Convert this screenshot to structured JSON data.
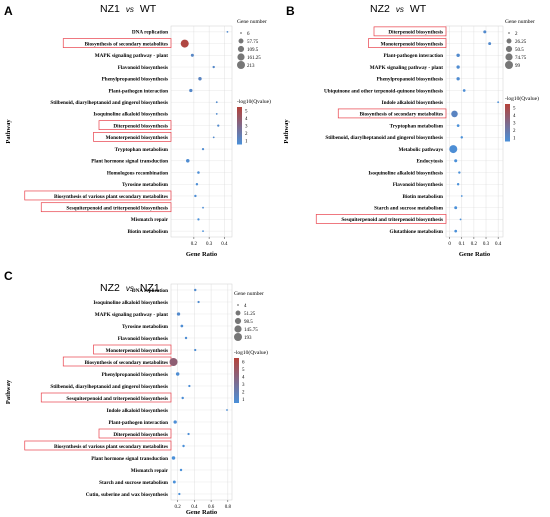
{
  "chart_data": [
    {
      "type": "scatter",
      "panel": "A",
      "title": {
        "left": "NZ1",
        "vs": "vs",
        "right": "WT"
      },
      "xlabel": "Gene Ratio",
      "ylabel": "Pathway",
      "xlim": [
        0.05,
        0.45
      ],
      "xticks": [
        "0.2",
        "0.3",
        "0.4"
      ],
      "pathways": [
        {
          "name": "DNA replication",
          "ratio": 0.42,
          "genes": 6,
          "q": 1.3,
          "highlight": false
        },
        {
          "name": "Biosynthesis of secondary metabolites",
          "ratio": 0.14,
          "genes": 213,
          "q": 4.8,
          "highlight": true
        },
        {
          "name": "MAPK signaling pathway - plant",
          "ratio": 0.19,
          "genes": 14,
          "q": 1.5,
          "highlight": false
        },
        {
          "name": "Flavonoid biosynthesis",
          "ratio": 0.33,
          "genes": 8,
          "q": 1.4,
          "highlight": false
        },
        {
          "name": "Phenylpropanoid biosynthesis",
          "ratio": 0.24,
          "genes": 20,
          "q": 1.6,
          "highlight": false
        },
        {
          "name": "Plant-pathogen interaction",
          "ratio": 0.18,
          "genes": 18,
          "q": 1.4,
          "highlight": false
        },
        {
          "name": "Stilbenoid, diarylheptanoid and gingerol biosynthesis",
          "ratio": 0.35,
          "genes": 6,
          "q": 1.3,
          "highlight": false
        },
        {
          "name": "Isoquinoline alkaloid biosynthesis",
          "ratio": 0.35,
          "genes": 6,
          "q": 1.3,
          "highlight": false
        },
        {
          "name": "Diterpenoid biosynthesis",
          "ratio": 0.36,
          "genes": 7,
          "q": 1.3,
          "highlight": true
        },
        {
          "name": "Monoterpenoid biosynthesis",
          "ratio": 0.33,
          "genes": 6,
          "q": 1.3,
          "highlight": true
        },
        {
          "name": "Tryptophan metabolism",
          "ratio": 0.26,
          "genes": 7,
          "q": 1.2,
          "highlight": false
        },
        {
          "name": "Plant hormone signal transduction",
          "ratio": 0.16,
          "genes": 22,
          "q": 1.2,
          "highlight": false
        },
        {
          "name": "Homologous recombination",
          "ratio": 0.23,
          "genes": 9,
          "q": 1.1,
          "highlight": false
        },
        {
          "name": "Tyrosine metabolism",
          "ratio": 0.22,
          "genes": 8,
          "q": 1.1,
          "highlight": false
        },
        {
          "name": "Biosynthesis of various plant secondary metabolites",
          "ratio": 0.21,
          "genes": 8,
          "q": 1.1,
          "highlight": true
        },
        {
          "name": "Sesquiterpenoid and triterpenoid biosynthesis",
          "ratio": 0.26,
          "genes": 6,
          "q": 1.1,
          "highlight": true
        },
        {
          "name": "Mismatch repair",
          "ratio": 0.23,
          "genes": 7,
          "q": 1.0,
          "highlight": false
        },
        {
          "name": "Biotin metabolism",
          "ratio": 0.26,
          "genes": 6,
          "q": 1.0,
          "highlight": false
        }
      ],
      "legend_size": {
        "title": "Gene number",
        "items": [
          "6",
          "57.75",
          "109.5",
          "161.25",
          "213"
        ],
        "values": [
          6,
          57.75,
          109.5,
          161.25,
          213
        ]
      },
      "legend_color": {
        "title": "-log10(Qvalue)",
        "ticks": [
          "5",
          "4",
          "3",
          "2",
          "1"
        ],
        "min": 1,
        "max": 5
      }
    },
    {
      "type": "scatter",
      "panel": "B",
      "title": {
        "left": "NZ2",
        "vs": "vs",
        "right": "WT"
      },
      "xlabel": "Gene Ratio",
      "ylabel": "Pathway",
      "xlim": [
        -0.03,
        0.44
      ],
      "xticks": [
        "0",
        "0.1",
        "0.2",
        "0.3",
        "0.4"
      ],
      "pathways": [
        {
          "name": "Diterpenoid biosynthesis",
          "ratio": 0.29,
          "genes": 6,
          "q": 1.3,
          "highlight": true
        },
        {
          "name": "Monoterpenoid biosynthesis",
          "ratio": 0.33,
          "genes": 5,
          "q": 1.3,
          "highlight": true
        },
        {
          "name": "Plant-pathogen interaction",
          "ratio": 0.07,
          "genes": 9,
          "q": 1.3,
          "highlight": false
        },
        {
          "name": "MAPK signaling pathway - plant",
          "ratio": 0.07,
          "genes": 8,
          "q": 1.2,
          "highlight": false
        },
        {
          "name": "Phenylpropanoid biosynthesis",
          "ratio": 0.07,
          "genes": 8,
          "q": 1.2,
          "highlight": false
        },
        {
          "name": "Ubiquinone and other terpenoid-quinone biosynthesis",
          "ratio": 0.12,
          "genes": 4,
          "q": 1.1,
          "highlight": false
        },
        {
          "name": "Indole alkaloid biosynthesis",
          "ratio": 0.4,
          "genes": 2,
          "q": 1.1,
          "highlight": false
        },
        {
          "name": "Biosynthesis of secondary metabolites",
          "ratio": 0.04,
          "genes": 60,
          "q": 1.6,
          "highlight": true
        },
        {
          "name": "Tryptophan metabolism",
          "ratio": 0.07,
          "genes": 4,
          "q": 1.0,
          "highlight": false
        },
        {
          "name": "Stilbenoid, diarylheptanoid and gingerol biosynthesis",
          "ratio": 0.1,
          "genes": 3,
          "q": 1.0,
          "highlight": false
        },
        {
          "name": "Metabolic pathways",
          "ratio": 0.03,
          "genes": 99,
          "q": 1.1,
          "highlight": false
        },
        {
          "name": "Endocytosis",
          "ratio": 0.05,
          "genes": 6,
          "q": 1.0,
          "highlight": false
        },
        {
          "name": "Isoquinoline alkaloid biosynthesis",
          "ratio": 0.08,
          "genes": 3,
          "q": 1.0,
          "highlight": false
        },
        {
          "name": "Flavonoid biosynthesis",
          "ratio": 0.07,
          "genes": 3,
          "q": 1.0,
          "highlight": false
        },
        {
          "name": "Biotin metabolism",
          "ratio": 0.1,
          "genes": 2,
          "q": 1.0,
          "highlight": false
        },
        {
          "name": "Starch and sucrose metabolism",
          "ratio": 0.05,
          "genes": 5,
          "q": 1.0,
          "highlight": false
        },
        {
          "name": "Sesquiterpenoid and triterpenoid biosynthesis",
          "ratio": 0.09,
          "genes": 2,
          "q": 1.0,
          "highlight": true
        },
        {
          "name": "Glutathione metabolism",
          "ratio": 0.05,
          "genes": 4,
          "q": 1.0,
          "highlight": false
        }
      ],
      "legend_size": {
        "title": "Gene number",
        "items": [
          "2",
          "26.25",
          "50.5",
          "74.75",
          "99"
        ],
        "values": [
          2,
          26.25,
          50.5,
          74.75,
          99
        ]
      },
      "legend_color": {
        "title": "-log10(Qvalue)",
        "ticks": [
          "5",
          "4",
          "3",
          "2",
          "1"
        ],
        "min": 1,
        "max": 5
      }
    },
    {
      "type": "scatter",
      "panel": "C",
      "title": {
        "left": "NZ2",
        "vs": "vs",
        "right": "NZ1"
      },
      "xlabel": "Gene Ratio",
      "ylabel": "Pathway",
      "xlim": [
        0.12,
        0.85
      ],
      "xticks": [
        "0.2",
        "0.4",
        "0.6",
        "0.8"
      ],
      "pathways": [
        {
          "name": "DNA replication",
          "ratio": 0.41,
          "genes": 6,
          "q": 1.3,
          "highlight": false
        },
        {
          "name": "Isoquinoline alkaloid biosynthesis",
          "ratio": 0.45,
          "genes": 5,
          "q": 1.3,
          "highlight": false
        },
        {
          "name": "MAPK signaling pathway - plant",
          "ratio": 0.21,
          "genes": 16,
          "q": 1.4,
          "highlight": false
        },
        {
          "name": "Tyrosine metabolism",
          "ratio": 0.25,
          "genes": 8,
          "q": 1.2,
          "highlight": false
        },
        {
          "name": "Flavonoid biosynthesis",
          "ratio": 0.3,
          "genes": 6,
          "q": 1.2,
          "highlight": false
        },
        {
          "name": "Monoterpenoid biosynthesis",
          "ratio": 0.41,
          "genes": 5,
          "q": 1.2,
          "highlight": true
        },
        {
          "name": "Biosynthesis of secondary metabolites",
          "ratio": 0.15,
          "genes": 193,
          "q": 4.2,
          "highlight": true
        },
        {
          "name": "Phenylpropanoid biosynthesis",
          "ratio": 0.2,
          "genes": 18,
          "q": 1.2,
          "highlight": false
        },
        {
          "name": "Stilbenoid, diarylheptanoid and gingerol biosynthesis",
          "ratio": 0.34,
          "genes": 5,
          "q": 1.1,
          "highlight": false
        },
        {
          "name": "Sesquiterpenoid and triterpenoid biosynthesis",
          "ratio": 0.26,
          "genes": 6,
          "q": 1.1,
          "highlight": true
        },
        {
          "name": "Indole alkaloid biosynthesis",
          "ratio": 0.79,
          "genes": 4,
          "q": 1.1,
          "highlight": false
        },
        {
          "name": "Plant-pathogen interaction",
          "ratio": 0.17,
          "genes": 16,
          "q": 1.1,
          "highlight": false
        },
        {
          "name": "Diterpenoid biosynthesis",
          "ratio": 0.33,
          "genes": 5,
          "q": 1.1,
          "highlight": true
        },
        {
          "name": "Biosynthesis of various plant secondary metabolites",
          "ratio": 0.27,
          "genes": 6,
          "q": 1.0,
          "highlight": true
        },
        {
          "name": "Plant hormone signal transduction",
          "ratio": 0.15,
          "genes": 18,
          "q": 1.0,
          "highlight": false
        },
        {
          "name": "Mismatch repair",
          "ratio": 0.24,
          "genes": 6,
          "q": 1.0,
          "highlight": false
        },
        {
          "name": "Starch and sucrose metabolism",
          "ratio": 0.16,
          "genes": 10,
          "q": 1.0,
          "highlight": false
        },
        {
          "name": "Cutin, suberine and wax biosynthesis",
          "ratio": 0.22,
          "genes": 5,
          "q": 1.0,
          "highlight": false
        }
      ],
      "legend_size": {
        "title": "Gene number",
        "items": [
          "4",
          "51.25",
          "98.5",
          "145.75",
          "193"
        ],
        "values": [
          4,
          51.25,
          98.5,
          145.75,
          193
        ]
      },
      "legend_color": {
        "title": "-log10(Qvalue)",
        "ticks": [
          "6",
          "5",
          "4",
          "3",
          "2",
          "1"
        ],
        "min": 1,
        "max": 6
      }
    }
  ],
  "colors": {
    "low": "#4a90d9",
    "high": "#b5423a",
    "highlight_box": "#e8404a",
    "grid": "#d8d8d8",
    "axis": "#333333"
  }
}
